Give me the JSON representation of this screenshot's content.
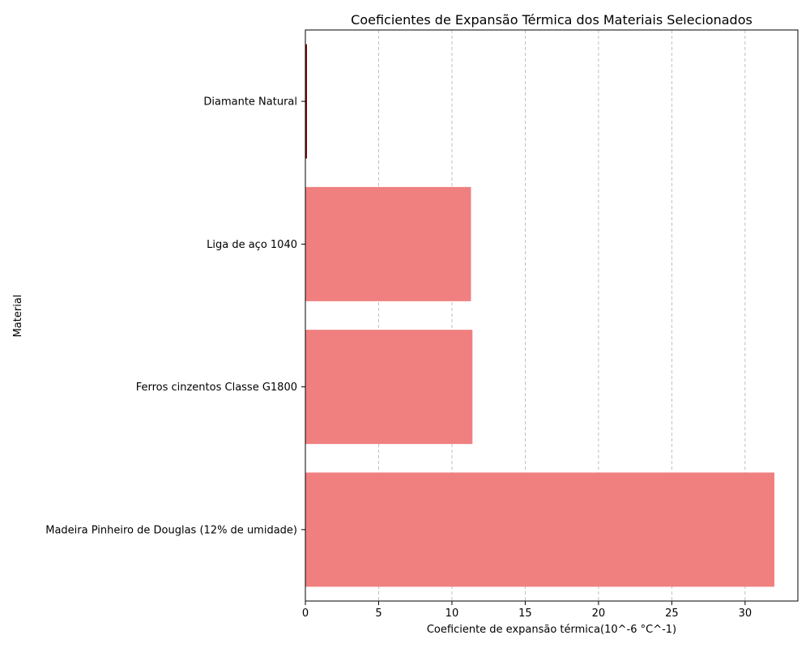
{
  "chart_data": {
    "type": "bar",
    "orientation": "horizontal",
    "title": "Coeficientes de Expansão Térmica dos Materiais Selecionados",
    "xlabel": "Coeficiente de expansão térmica(10^-6 °C^-1)",
    "ylabel": "Material",
    "categories": [
      "Diamante Natural",
      "Liga de aço 1040",
      "Ferros cinzentos Classe G1800",
      "Madeira Pinheiro de Douglas (12% de umidade)"
    ],
    "values": [
      0.12,
      11.3,
      11.4,
      32.0
    ],
    "xlim": [
      0,
      33.6
    ],
    "xticks": [
      0,
      5,
      10,
      15,
      20,
      25,
      30
    ],
    "grid": "x-dashed",
    "colors": {
      "bar_fill": "#f08080",
      "bar_edge": "#8b0000",
      "grid": "#b0b0b0",
      "axis": "#000000"
    }
  }
}
